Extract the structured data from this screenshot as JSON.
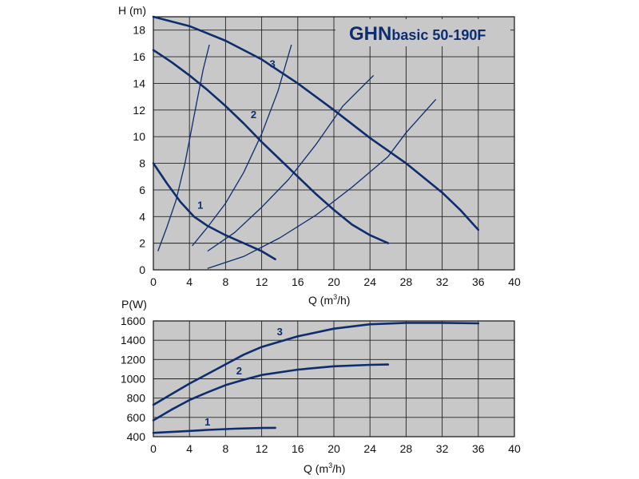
{
  "chart_data": [
    {
      "type": "line",
      "title_main": "GHN",
      "title_rest": "basic 50-190F",
      "ylabel": "H (m)",
      "xlabel_prefix": "Q (m",
      "xlabel_sup": "3",
      "xlabel_suffix": "/h)",
      "xlim": [
        0,
        40
      ],
      "ylim": [
        0,
        19
      ],
      "xticks": [
        0,
        4,
        8,
        12,
        16,
        20,
        24,
        28,
        32,
        36,
        40
      ],
      "yticks": [
        0,
        2,
        4,
        6,
        8,
        10,
        12,
        14,
        16,
        18
      ],
      "grid": true,
      "color": "#0d2d6e",
      "series": [
        {
          "label": "1",
          "label_at": [
            5.2,
            4.6
          ],
          "points": [
            [
              0,
              8
            ],
            [
              1.5,
              6.5
            ],
            [
              3,
              5.1
            ],
            [
              4.5,
              4
            ],
            [
              6,
              3.3
            ],
            [
              8,
              2.6
            ],
            [
              10,
              2
            ],
            [
              12,
              1.4
            ],
            [
              13.5,
              0.8
            ]
          ]
        },
        {
          "label": "2",
          "label_at": [
            11.1,
            11.4
          ],
          "points": [
            [
              0,
              16.5
            ],
            [
              2,
              15.6
            ],
            [
              4,
              14.6
            ],
            [
              6,
              13.5
            ],
            [
              8,
              12.3
            ],
            [
              10,
              11
            ],
            [
              12,
              9.6
            ],
            [
              14,
              8.3
            ],
            [
              16,
              7
            ],
            [
              18,
              5.7
            ],
            [
              20,
              4.5
            ],
            [
              22,
              3.4
            ],
            [
              24,
              2.6
            ],
            [
              26,
              2
            ]
          ]
        },
        {
          "label": "3",
          "label_at": [
            13.2,
            15.2
          ],
          "points": [
            [
              0,
              19
            ],
            [
              4,
              18.3
            ],
            [
              8,
              17.2
            ],
            [
              12,
              15.8
            ],
            [
              16,
              14
            ],
            [
              20,
              12
            ],
            [
              24,
              9.9
            ],
            [
              28,
              8
            ],
            [
              32,
              5.8
            ],
            [
              34,
              4.5
            ],
            [
              36,
              3
            ]
          ]
        }
      ],
      "system_curves": [
        [
          [
            0.5,
            1.4
          ],
          [
            1.5,
            3.2
          ],
          [
            2.5,
            5.2
          ],
          [
            3.5,
            8
          ],
          [
            4.5,
            11.5
          ],
          [
            5.5,
            15
          ],
          [
            6.2,
            16.9
          ]
        ],
        [
          [
            4.3,
            1.8
          ],
          [
            6,
            3.2
          ],
          [
            8,
            5
          ],
          [
            10,
            7.3
          ],
          [
            12,
            10.2
          ],
          [
            13.8,
            13.4
          ],
          [
            15.3,
            16.9
          ]
        ],
        [
          [
            6,
            1.4
          ],
          [
            9,
            2.8
          ],
          [
            12,
            4.7
          ],
          [
            15,
            6.8
          ],
          [
            18,
            9.4
          ],
          [
            21,
            12.3
          ],
          [
            24.4,
            14.6
          ]
        ],
        [
          [
            6,
            0.1
          ],
          [
            10,
            1
          ],
          [
            14,
            2.4
          ],
          [
            18,
            4.1
          ],
          [
            22,
            6.2
          ],
          [
            26,
            8.5
          ],
          [
            28,
            10.3
          ],
          [
            31.3,
            12.8
          ]
        ]
      ]
    },
    {
      "type": "line",
      "ylabel": "P(W)",
      "xlabel_prefix": "Q (m",
      "xlabel_sup": "3",
      "xlabel_suffix": "/h)",
      "xlim": [
        0,
        40
      ],
      "ylim": [
        400,
        1600
      ],
      "xticks": [
        0,
        4,
        8,
        12,
        16,
        20,
        24,
        28,
        32,
        36,
        40
      ],
      "yticks": [
        400,
        600,
        800,
        1000,
        1200,
        1400,
        1600
      ],
      "grid": true,
      "color": "#0d2d6e",
      "series": [
        {
          "label": "1",
          "label_at": [
            6,
            515
          ],
          "points": [
            [
              0,
              440
            ],
            [
              3,
              455
            ],
            [
              6,
              470
            ],
            [
              9,
              483
            ],
            [
              12,
              490
            ],
            [
              13.5,
              492
            ]
          ]
        },
        {
          "label": "2",
          "label_at": [
            9.5,
            1045
          ],
          "points": [
            [
              0,
              570
            ],
            [
              2,
              680
            ],
            [
              4,
              780
            ],
            [
              6,
              860
            ],
            [
              8,
              935
            ],
            [
              10,
              990
            ],
            [
              12,
              1040
            ],
            [
              16,
              1095
            ],
            [
              20,
              1130
            ],
            [
              24,
              1145
            ],
            [
              26,
              1148
            ]
          ]
        },
        {
          "label": "3",
          "label_at": [
            14,
            1450
          ],
          "points": [
            [
              0,
              730
            ],
            [
              2,
              840
            ],
            [
              4,
              950
            ],
            [
              6,
              1050
            ],
            [
              8,
              1150
            ],
            [
              10,
              1250
            ],
            [
              12,
              1330
            ],
            [
              16,
              1440
            ],
            [
              20,
              1520
            ],
            [
              24,
              1565
            ],
            [
              28,
              1580
            ],
            [
              32,
              1580
            ],
            [
              36,
              1575
            ]
          ]
        }
      ]
    }
  ]
}
